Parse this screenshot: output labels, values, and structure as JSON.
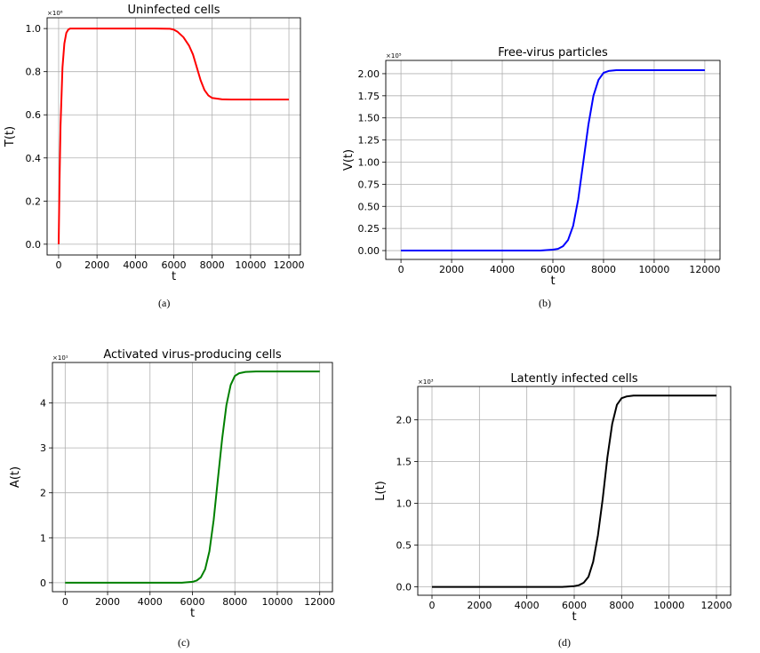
{
  "chart_data": [
    {
      "type": "line",
      "title": "Uninfected cells",
      "xlabel": "t",
      "ylabel": "T(t)",
      "multiplier": "×10⁶",
      "caption": "(a)",
      "xlim": [
        -600,
        12600
      ],
      "ylim": [
        -0.05,
        1.05
      ],
      "xticks": [
        0,
        2000,
        4000,
        6000,
        8000,
        10000,
        12000
      ],
      "yticks": [
        0.0,
        0.2,
        0.4,
        0.6,
        0.8,
        1.0
      ],
      "ytick_decimals": 1,
      "grid": true,
      "series": [
        {
          "color": "#ff0000",
          "x": [
            0,
            50,
            100,
            200,
            300,
            400,
            500,
            600,
            1000,
            2000,
            3000,
            4000,
            5000,
            5800,
            6000,
            6200,
            6500,
            6800,
            7000,
            7200,
            7400,
            7600,
            7800,
            8000,
            8500,
            9000,
            10000,
            11000,
            12000
          ],
          "y": [
            0.0,
            0.3,
            0.55,
            0.82,
            0.93,
            0.98,
            0.995,
            1.0,
            1.0,
            1.0,
            1.0,
            1.0,
            1.0,
            0.999,
            0.995,
            0.985,
            0.96,
            0.92,
            0.88,
            0.82,
            0.76,
            0.715,
            0.69,
            0.678,
            0.672,
            0.671,
            0.671,
            0.671,
            0.671
          ]
        }
      ]
    },
    {
      "type": "line",
      "title": "Free-virus particles",
      "xlabel": "t",
      "ylabel": "V(t)",
      "multiplier": "×10⁵",
      "caption": "(b)",
      "xlim": [
        -600,
        12600
      ],
      "ylim": [
        -0.1,
        2.15
      ],
      "xticks": [
        0,
        2000,
        4000,
        6000,
        8000,
        10000,
        12000
      ],
      "yticks": [
        0.0,
        0.25,
        0.5,
        0.75,
        1.0,
        1.25,
        1.5,
        1.75,
        2.0
      ],
      "ytick_decimals": 2,
      "grid": true,
      "series": [
        {
          "color": "#0000ff",
          "x": [
            0,
            2000,
            4000,
            5500,
            6000,
            6200,
            6400,
            6600,
            6800,
            7000,
            7200,
            7400,
            7600,
            7800,
            8000,
            8200,
            8500,
            9000,
            10000,
            11000,
            12000
          ],
          "y": [
            0.0,
            0.0,
            0.0,
            0.0,
            0.01,
            0.02,
            0.05,
            0.12,
            0.28,
            0.58,
            1.0,
            1.42,
            1.75,
            1.93,
            2.01,
            2.03,
            2.04,
            2.04,
            2.04,
            2.04,
            2.04
          ]
        }
      ]
    },
    {
      "type": "line",
      "title": "Activated virus-producing cells",
      "xlabel": "t",
      "ylabel": "A(t)",
      "multiplier": "×10¹",
      "caption": "(c)",
      "xlim": [
        -600,
        12600
      ],
      "ylim": [
        -0.2,
        4.9
      ],
      "xticks": [
        0,
        2000,
        4000,
        6000,
        8000,
        10000,
        12000
      ],
      "yticks": [
        0,
        1,
        2,
        3,
        4
      ],
      "ytick_decimals": 0,
      "grid": true,
      "series": [
        {
          "color": "#008000",
          "x": [
            0,
            2000,
            4000,
            5500,
            6000,
            6200,
            6400,
            6600,
            6800,
            7000,
            7200,
            7400,
            7600,
            7800,
            8000,
            8200,
            8500,
            9000,
            10000,
            11000,
            12000
          ],
          "y": [
            0.0,
            0.0,
            0.0,
            0.0,
            0.02,
            0.05,
            0.12,
            0.3,
            0.7,
            1.4,
            2.3,
            3.2,
            3.95,
            4.4,
            4.6,
            4.66,
            4.69,
            4.7,
            4.7,
            4.7,
            4.7
          ]
        }
      ]
    },
    {
      "type": "line",
      "title": "Latently infected cells",
      "xlabel": "t",
      "ylabel": "L(t)",
      "multiplier": "×10³",
      "caption": "(d)",
      "xlim": [
        -600,
        12600
      ],
      "ylim": [
        -0.1,
        2.4
      ],
      "xticks": [
        0,
        2000,
        4000,
        6000,
        8000,
        10000,
        12000
      ],
      "yticks": [
        0.0,
        0.5,
        1.0,
        1.5,
        2.0
      ],
      "ytick_decimals": 1,
      "grid": true,
      "series": [
        {
          "color": "#000000",
          "x": [
            0,
            2000,
            4000,
            5500,
            6000,
            6200,
            6400,
            6600,
            6800,
            7000,
            7200,
            7400,
            7600,
            7800,
            8000,
            8200,
            8500,
            9000,
            10000,
            11000,
            12000
          ],
          "y": [
            0.0,
            0.0,
            0.0,
            0.0,
            0.01,
            0.02,
            0.05,
            0.12,
            0.3,
            0.62,
            1.05,
            1.55,
            1.95,
            2.18,
            2.26,
            2.28,
            2.29,
            2.29,
            2.29,
            2.29,
            2.29
          ]
        }
      ]
    }
  ]
}
